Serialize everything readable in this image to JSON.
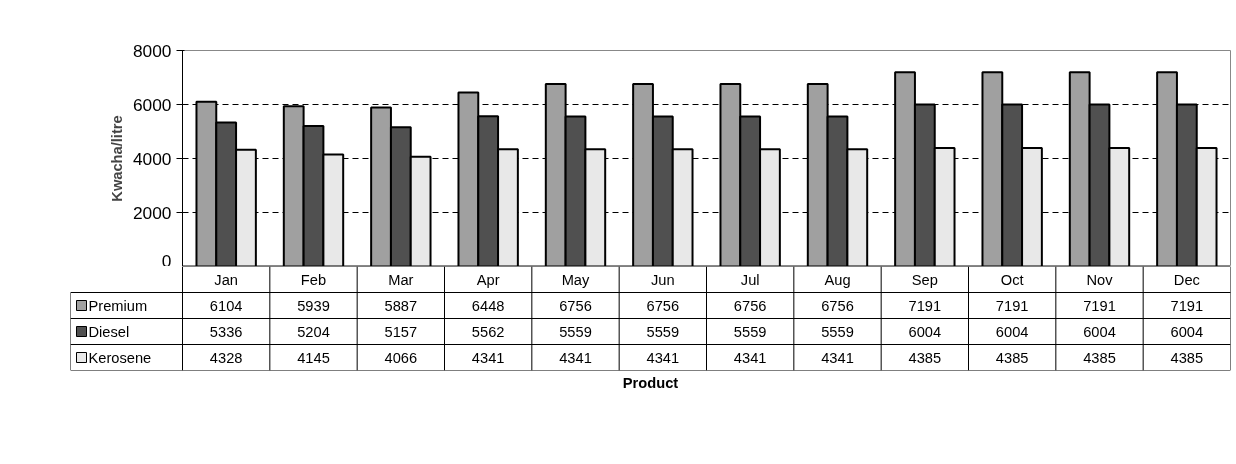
{
  "chart_data": {
    "type": "bar",
    "annotations": [
      "Product"
    ],
    "ylabel": "Kwacha/litre",
    "categories": [
      "Jan",
      "Feb",
      "Mar",
      "Apr",
      "May",
      "Jun",
      "Jul",
      "Aug",
      "Sep",
      "Oct",
      "Nov",
      "Dec"
    ],
    "series": [
      {
        "name": "Premium",
        "color": "#a0a0a0",
        "values": [
          6104,
          5939,
          5887,
          6448,
          6756,
          6756,
          6756,
          6756,
          7191,
          7191,
          7191,
          7191
        ]
      },
      {
        "name": "Diesel",
        "color": "#505050",
        "values": [
          5336,
          5204,
          5157,
          5562,
          5559,
          5559,
          5559,
          5559,
          6004,
          6004,
          6004,
          6004
        ]
      },
      {
        "name": "Kerosene",
        "color": "#e8e8e8",
        "values": [
          4328,
          4145,
          4066,
          4341,
          4341,
          4341,
          4341,
          4341,
          4385,
          4385,
          4385,
          4385
        ]
      }
    ],
    "ylim": [
      0,
      8000
    ],
    "yticks": [
      0,
      2000,
      4000,
      6000,
      8000
    ],
    "grid": "y",
    "legend": "bottom",
    "data_labels": true
  }
}
